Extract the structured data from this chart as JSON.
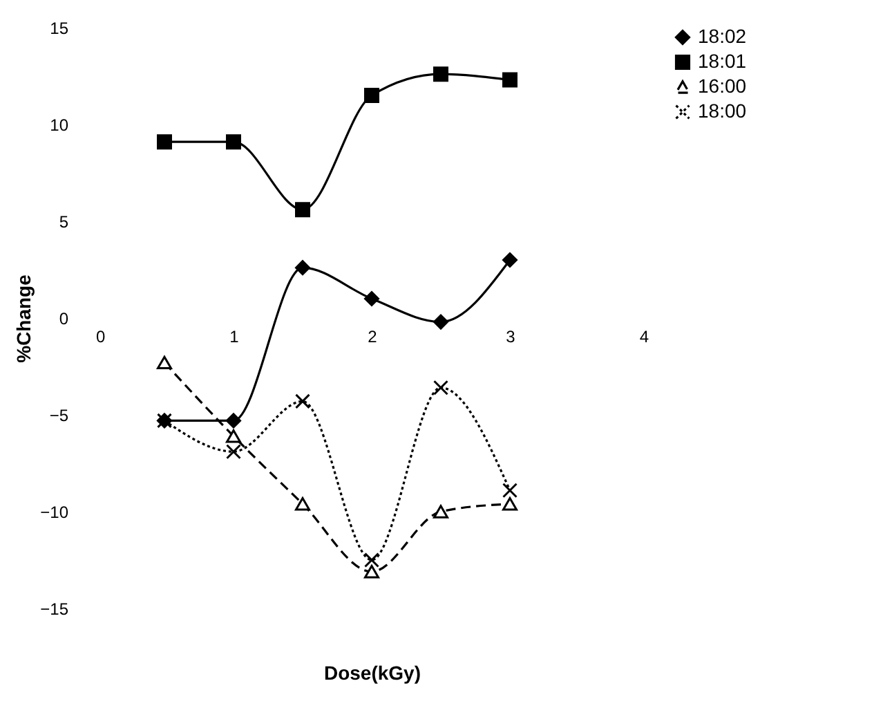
{
  "chart_data": {
    "type": "line",
    "xlabel": "Dose(kGy)",
    "ylabel": "%Change",
    "x": [
      0.5,
      1,
      1.5,
      2,
      2.5,
      3
    ],
    "xlim": [
      0,
      4
    ],
    "xticks": [
      0,
      1,
      2,
      3,
      4
    ],
    "ylim": [
      -15,
      15
    ],
    "yticks": [
      -15,
      -10,
      -5,
      0,
      5,
      10,
      15
    ],
    "grid": false,
    "legend": "right",
    "series": [
      {
        "name": "18:02",
        "color": "#000000",
        "marker": "diamond",
        "line_style": "solid",
        "values": [
          -5.3,
          -5.3,
          2.6,
          1.0,
          -0.2,
          3.0
        ]
      },
      {
        "name": "18:01",
        "color": "#000000",
        "marker": "square",
        "line_style": "solid",
        "values": [
          9.1,
          9.1,
          5.6,
          11.5,
          12.6,
          12.3
        ]
      },
      {
        "name": "16:00",
        "color": "#000000",
        "marker": "triangle",
        "line_style": "dashed",
        "values": [
          -2.3,
          -6.1,
          -9.6,
          -13.1,
          -10.0,
          -9.6
        ]
      },
      {
        "name": "18:00",
        "color": "#000000",
        "marker": "cross",
        "line_style": "dotted",
        "values": [
          -5.3,
          -6.9,
          -4.3,
          -12.5,
          -3.6,
          -8.9
        ]
      }
    ]
  }
}
